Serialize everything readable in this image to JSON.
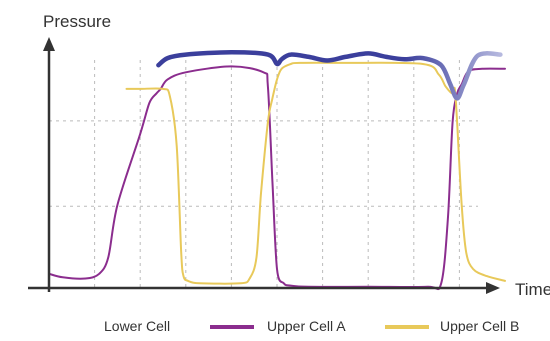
{
  "colors": {
    "lower_cell": "#3b3f9c",
    "lower_cell_fade": "#b6b9df",
    "upper_cell_a": "#8b2d8e",
    "upper_cell_b": "#e8c95a",
    "axis": "#333333",
    "grid": "#bbbbbb"
  },
  "chart_data": {
    "type": "line",
    "title": "",
    "xlabel": "Time",
    "ylabel": "Pressure",
    "xlim": [
      0,
      100
    ],
    "ylim": [
      0,
      100
    ],
    "ticks_shown": false,
    "grid": "dashed",
    "legend_position": "bottom",
    "series": [
      {
        "name": "Lower Cell",
        "color_key": "lower_cell",
        "x": [
          24,
          26,
          30,
          40,
          48,
          50,
          51,
          53,
          57,
          61,
          65,
          70,
          74,
          78,
          82,
          86,
          88,
          89.5,
          91,
          94,
          99
        ],
        "y": [
          94,
          97,
          98.5,
          99.5,
          98.5,
          94.5,
          96.5,
          98.5,
          97.5,
          96,
          97.5,
          99,
          97.5,
          96.5,
          97,
          94,
          86,
          80,
          86,
          98,
          98.5
        ]
      },
      {
        "name": "Upper Cell A",
        "color_key": "upper_cell_a",
        "x": [
          0,
          3,
          8,
          11,
          13,
          15,
          20,
          22,
          23.5,
          24.5,
          26,
          30,
          40,
          47,
          48,
          49,
          50,
          51.5,
          53,
          57,
          70,
          83,
          86,
          87.5,
          88.5,
          89.5,
          90.5,
          92,
          95,
          100
        ],
        "y": [
          6,
          4.5,
          4,
          6,
          13,
          35,
          65,
          78,
          82,
          84,
          88,
          91,
          93.5,
          91,
          85,
          45,
          8,
          2,
          1,
          0.5,
          0.5,
          0.5,
          2,
          30,
          70,
          82,
          86,
          91.5,
          92.5,
          92.5
        ]
      },
      {
        "name": "Upper Cell B",
        "color_key": "upper_cell_b",
        "x": [
          17,
          20,
          25,
          26.5,
          28,
          29,
          29.5,
          30.5,
          33,
          42,
          44,
          45.5,
          46.5,
          48,
          49,
          50,
          51,
          53,
          55,
          65,
          82,
          85.5,
          87,
          88.5,
          89,
          89.5,
          90.5,
          91.5,
          93,
          96,
          100
        ],
        "y": [
          84,
          84,
          84,
          81,
          60,
          15,
          5,
          3,
          2,
          2,
          4,
          13,
          40,
          70,
          80,
          88,
          92.5,
          94.5,
          95,
          95,
          94.5,
          90,
          85,
          82,
          84,
          70,
          35,
          15,
          8,
          5,
          3
        ]
      }
    ]
  }
}
